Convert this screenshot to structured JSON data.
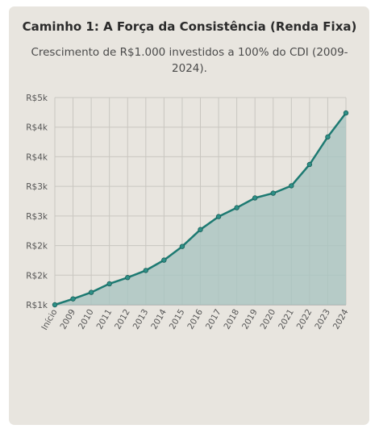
{
  "card": {
    "title": "Caminho 1: A Força da Consistência (Renda Fixa)",
    "subtitle": "Crescimento de R$1.000 investidos a 100% do CDI (2009-2024)."
  },
  "chart_data": {
    "type": "area",
    "title": "",
    "xlabel": "",
    "ylabel": "",
    "categories": [
      "Início",
      "2009",
      "2010",
      "2011",
      "2012",
      "2013",
      "2014",
      "2015",
      "2016",
      "2017",
      "2018",
      "2019",
      "2020",
      "2021",
      "2022",
      "2023",
      "2024"
    ],
    "series": [
      {
        "values": [
          1000,
          1100,
          1210,
          1355,
          1460,
          1580,
          1755,
          1985,
          2270,
          2490,
          2640,
          2805,
          2885,
          3010,
          3370,
          3835,
          4240
        ]
      }
    ],
    "ylim": [
      1000,
      4500
    ],
    "y_ticks": [
      {
        "value": 1000,
        "label": "R$1k"
      },
      {
        "value": 1500,
        "label": "R$2k"
      },
      {
        "value": 2000,
        "label": "R$2k"
      },
      {
        "value": 2500,
        "label": "R$3k"
      },
      {
        "value": 3000,
        "label": "R$3k"
      },
      {
        "value": 3500,
        "label": "R$4k"
      },
      {
        "value": 4000,
        "label": "R$4k"
      },
      {
        "value": 4500,
        "label": "R$5k"
      }
    ],
    "grid": true,
    "colors": {
      "line": "#1d7a72",
      "fill": "#a9c4c0",
      "marker": "#2d8f86",
      "grid": "#c9c6c0",
      "axis": "#999999"
    }
  }
}
